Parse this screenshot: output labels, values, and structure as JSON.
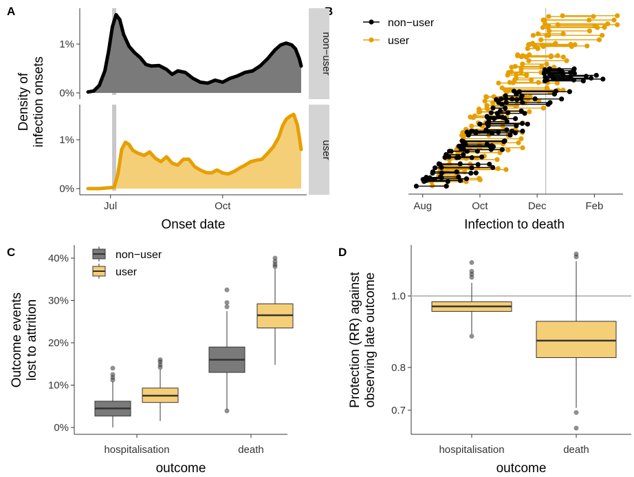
{
  "colors": {
    "nonuser": "#000000",
    "user": "#E69F00",
    "nonuser_fill": "#7a7a7a",
    "user_fill": "#F5CE78",
    "strip": "#d4d4d4",
    "refline": "#bdbdbd"
  },
  "panel_labels": [
    "A",
    "B",
    "C",
    "D"
  ],
  "legend_labels": {
    "nonuser": "non−user",
    "user": "user"
  },
  "chart_data": [
    {
      "type": "area",
      "panel": "A",
      "xlabel": "Onset date",
      "ylabel": [
        "Density of",
        "infection onsets"
      ],
      "x_ticks": [
        "Jul",
        "Oct"
      ],
      "y_ticks": [
        "0%",
        "1%"
      ],
      "facets": [
        "non−user",
        "user"
      ],
      "x_unit": "months since Jun 1",
      "x_range": [
        0.4,
        6.1
      ],
      "y_range": [
        0,
        1.7
      ],
      "vline_x": 1.1,
      "series": [
        {
          "name": "non−user",
          "x": [
            0.4,
            0.55,
            0.7,
            0.85,
            0.95,
            1.05,
            1.15,
            1.25,
            1.35,
            1.5,
            1.65,
            1.8,
            1.95,
            2.1,
            2.3,
            2.5,
            2.65,
            2.8,
            3.0,
            3.2,
            3.4,
            3.6,
            3.8,
            4.0,
            4.2,
            4.4,
            4.6,
            4.8,
            5.0,
            5.2,
            5.4,
            5.55,
            5.7,
            5.85,
            5.95,
            6.05,
            6.1
          ],
          "y": [
            0.02,
            0.04,
            0.15,
            0.45,
            0.85,
            1.35,
            1.6,
            1.5,
            1.2,
            0.95,
            0.82,
            0.72,
            0.58,
            0.55,
            0.56,
            0.48,
            0.38,
            0.45,
            0.42,
            0.3,
            0.22,
            0.2,
            0.26,
            0.22,
            0.3,
            0.35,
            0.42,
            0.45,
            0.55,
            0.7,
            0.88,
            0.98,
            1.02,
            0.98,
            0.9,
            0.7,
            0.55
          ]
        },
        {
          "name": "user",
          "x": [
            0.4,
            0.7,
            1.0,
            1.1,
            1.2,
            1.3,
            1.4,
            1.5,
            1.6,
            1.75,
            1.9,
            2.05,
            2.2,
            2.35,
            2.5,
            2.65,
            2.8,
            2.95,
            3.1,
            3.25,
            3.4,
            3.55,
            3.7,
            3.85,
            4.0,
            4.15,
            4.3,
            4.45,
            4.6,
            4.75,
            4.9,
            5.05,
            5.2,
            5.35,
            5.5,
            5.6,
            5.7,
            5.8,
            5.9,
            6.0,
            6.1
          ],
          "y": [
            0.0,
            0.0,
            0.02,
            0.03,
            0.3,
            0.8,
            0.95,
            0.9,
            0.78,
            0.72,
            0.68,
            0.75,
            0.62,
            0.55,
            0.65,
            0.52,
            0.48,
            0.6,
            0.6,
            0.45,
            0.38,
            0.33,
            0.32,
            0.38,
            0.32,
            0.3,
            0.35,
            0.42,
            0.48,
            0.55,
            0.58,
            0.6,
            0.72,
            0.85,
            1.05,
            1.28,
            1.42,
            1.48,
            1.52,
            1.3,
            0.8
          ]
        }
      ]
    },
    {
      "type": "scatter",
      "panel": "B",
      "xlabel": "Infection to death",
      "x_ticks": [
        "Aug",
        "Oct",
        "Dec",
        "Feb"
      ],
      "x_unit": "months since Jul 1",
      "x_range": [
        0.55,
        8.0
      ],
      "vline_x": 5.3,
      "series": [
        {
          "name": "non−user",
          "n": 75
        },
        {
          "name": "user",
          "n": 100
        }
      ]
    },
    {
      "type": "box",
      "panel": "C",
      "xlabel": "outcome",
      "ylabel": [
        "Outcome events",
        "lost to attrition"
      ],
      "categories": [
        "hospitalisation",
        "death"
      ],
      "y_ticks": [
        "0%",
        "10%",
        "20%",
        "30%",
        "40%"
      ],
      "y_range": [
        -1,
        42
      ],
      "series": [
        {
          "name": "non−user",
          "boxes": [
            {
              "min": 0,
              "q1": 2.7,
              "median": 4.5,
              "q3": 6.2,
              "max": 10.8,
              "outliers": [
                11.2,
                11.8,
                12.5,
                14.0
              ]
            },
            {
              "min": 4.2,
              "q1": 13.0,
              "median": 16.0,
              "q3": 19.0,
              "max": 27.5,
              "outliers": [
                3.9,
                28.5,
                29.5,
                32.5
              ]
            }
          ]
        },
        {
          "name": "user",
          "boxes": [
            {
              "min": 1.5,
              "q1": 5.9,
              "median": 7.5,
              "q3": 9.3,
              "max": 13.8,
              "outliers": [
                14.2,
                14.8,
                15.5,
                16.0
              ]
            },
            {
              "min": 14.8,
              "q1": 23.5,
              "median": 26.5,
              "q3": 29.2,
              "max": 37.5,
              "outliers": [
                38.0,
                38.5,
                39.2,
                40.0
              ]
            }
          ]
        }
      ]
    },
    {
      "type": "box",
      "panel": "D",
      "xlabel": "outcome",
      "ylabel": [
        "Protection (RR) against",
        "observing late outcome"
      ],
      "categories": [
        "hospitalisation",
        "death"
      ],
      "y_ticks": [
        0.7,
        0.8,
        1.0
      ],
      "y_scale": "log",
      "y_range": [
        0.655,
        1.2
      ],
      "hline": 1.0,
      "series": [
        {
          "name": "user",
          "boxes": [
            {
              "min": 0.888,
              "q1": 0.953,
              "median": 0.968,
              "q3": 0.982,
              "max": 1.042,
              "outliers": [
                0.882,
                1.06,
                1.07,
                1.08,
                1.11
              ]
            },
            {
              "min": 0.705,
              "q1": 0.825,
              "median": 0.87,
              "q3": 0.924,
              "max": 1.115,
              "outliers": [
                0.695,
                0.662,
                1.13,
                1.14
              ]
            }
          ]
        }
      ]
    }
  ]
}
